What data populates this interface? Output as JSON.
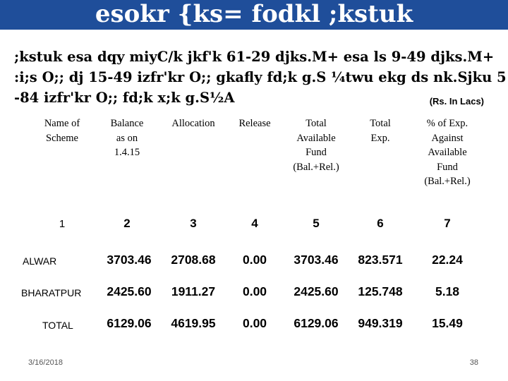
{
  "slide": {
    "title": "esokr {ks= fodkl ;kstuk",
    "body_lines": [
      ";kstuk esa dqy miyC/k jkf'k 61-29 djks.M+ esa ls 9-49 djks.M+",
      ":i;s O;; dj 15-49 izfr'kr O;; gkafly fd;k g.S ¼twu ekg ds nk.Sjku 5",
      "-84 izfr'kr O;; fd;k x;k g.S½A"
    ],
    "unit_note": "(Rs. In Lacs)"
  },
  "table": {
    "headers": [
      [
        "Name of",
        "Scheme"
      ],
      [
        "Balance",
        "as on",
        "1.4.15"
      ],
      [
        "Allocation"
      ],
      [
        "Release"
      ],
      [
        "Total",
        "Available",
        "Fund",
        "(Bal.+Rel.)"
      ],
      [
        "Total",
        "Exp."
      ],
      [
        "% of Exp.",
        "Against",
        "Available",
        "Fund",
        "(Bal.+Rel.)"
      ]
    ],
    "column_numbers": [
      "1",
      "2",
      "3",
      "4",
      "5",
      "6",
      "7"
    ],
    "rows": [
      {
        "name": "ALWAR",
        "values": [
          "3703.46",
          "2708.68",
          "0.00",
          "3703.46",
          "823.571",
          "22.24"
        ]
      },
      {
        "name": "BHARATPUR",
        "values": [
          "2425.60",
          "1911.27",
          "0.00",
          "2425.60",
          "125.748",
          "5.18"
        ]
      },
      {
        "name": "TOTAL",
        "values": [
          "6129.06",
          "4619.95",
          "0.00",
          "6129.06",
          "949.319",
          "15.49"
        ]
      }
    ]
  },
  "footer": {
    "date": "3/16/2018",
    "page_number": "38"
  }
}
